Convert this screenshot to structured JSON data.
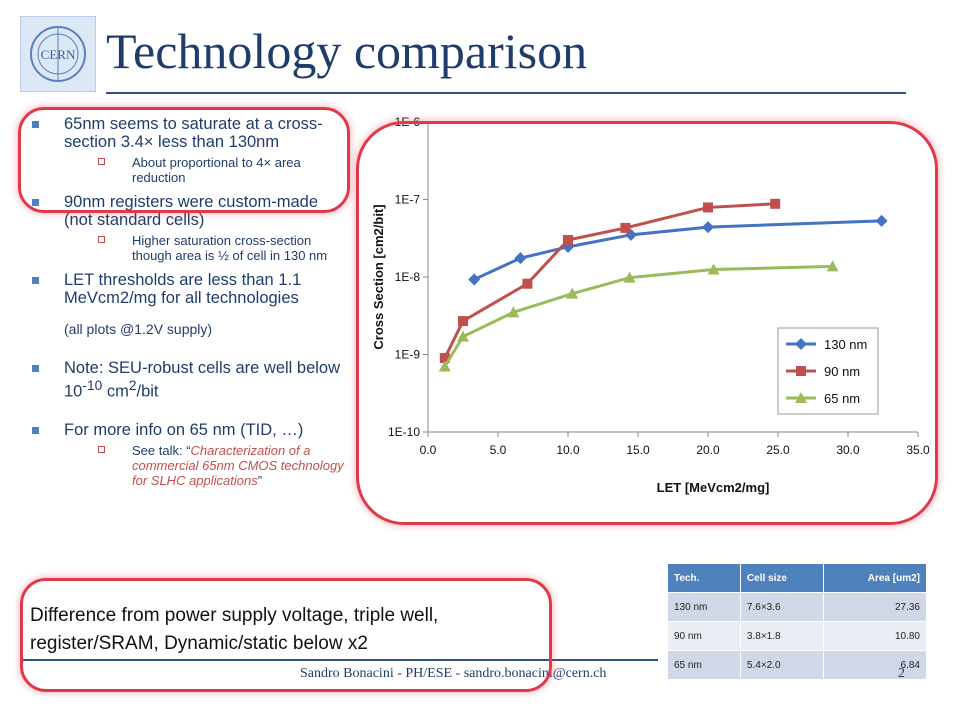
{
  "logo_text": "CERN",
  "title": "Technology comparison",
  "bullets": [
    {
      "text": "65nm seems to saturate at a cross-section 3.4× less than 130nm",
      "sub": [
        "About proportional  to 4× area reduction"
      ]
    },
    {
      "text": "90nm registers were custom-made (not standard cells)",
      "sub": [
        "Higher saturation cross-section though area is ½ of cell in 130 nm"
      ]
    },
    {
      "text": "LET thresholds are less than 1.1 MeVcm2/mg for all technologies",
      "sub": []
    }
  ],
  "note": "(all plots @1.2V  supply)",
  "seu": {
    "prefix": "Note: SEU-robust cells are well below 10",
    "exp": "-10",
    "unit": " cm",
    "unit_exp": "2",
    "suffix": "/bit"
  },
  "more": {
    "text": "For more info on 65 nm (TID, …)",
    "sub_prefix": "See talk: “",
    "sub_quote": "Characterization  of  a commercial 65nm CMOS technology  for SLHC applications",
    "sub_suffix": "”"
  },
  "difference": "Difference from power supply voltage, triple well, register/SRAM, Dynamic/static below x2",
  "footer": "Sandro Bonacini - PH/ESE - sandro.bonacini@cern.ch",
  "page_number": "2",
  "table": {
    "headers": [
      "Tech.",
      "Cell  size",
      "Area [um2]"
    ],
    "rows": [
      [
        "130 nm",
        "7.6×3.6",
        "27.36"
      ],
      [
        "90 nm",
        "3.8×1.8",
        "10.80"
      ],
      [
        "65 nm",
        "5.4×2.0",
        "6.84"
      ]
    ]
  },
  "colors": {
    "accent": "#1f3d6b",
    "highlight_ring": "#e03a4a",
    "table_header": "#4f81bd"
  },
  "chart_data": {
    "type": "line",
    "xlabel": "LET [MeVcm2/mg]",
    "ylabel": "Cross Section [cm2/bit]",
    "xlim": [
      0,
      35
    ],
    "ylim": [
      1e-10,
      1e-06
    ],
    "yscale": "log",
    "xticks": [
      "0.0",
      "5.0",
      "10.0",
      "15.0",
      "20.0",
      "25.0",
      "30.0",
      "35.0"
    ],
    "yticks": [
      "1E-10",
      "1E-9",
      "1E-8",
      "1E-7",
      "1E-6"
    ],
    "legend_position": "bottom-right",
    "grid": false,
    "series": [
      {
        "name": "130 nm",
        "color": "#4472c4",
        "marker": "diamond",
        "x": [
          3.3,
          6.6,
          10.0,
          14.5,
          20.0,
          32.4
        ],
        "y": [
          9.3e-09,
          1.75e-08,
          2.45e-08,
          3.5e-08,
          4.4e-08,
          5.3e-08
        ]
      },
      {
        "name": "90 nm",
        "color": "#c0504d",
        "marker": "square",
        "x": [
          1.2,
          2.5,
          7.1,
          10.0,
          14.1,
          20.0,
          24.8
        ],
        "y": [
          9e-10,
          2.7e-09,
          8.2e-09,
          3e-08,
          4.3e-08,
          7.9e-08,
          8.8e-08
        ]
      },
      {
        "name": "65 nm",
        "color": "#9bbb59",
        "marker": "triangle",
        "x": [
          1.2,
          2.5,
          6.1,
          10.3,
          14.4,
          20.4,
          28.9
        ],
        "y": [
          7e-10,
          1.7e-09,
          3.5e-09,
          6.1e-09,
          9.8e-09,
          1.25e-08,
          1.37e-08
        ]
      }
    ]
  }
}
